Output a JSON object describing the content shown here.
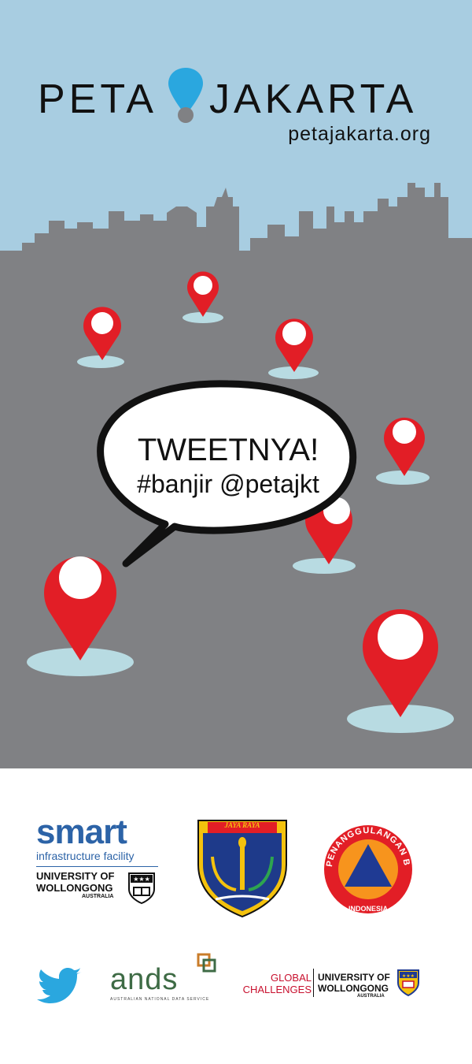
{
  "header": {
    "title_left": "PETA",
    "title_right": "JAKARTA",
    "url": "petajakarta.org"
  },
  "bubble": {
    "line1": "TWEETNYA!",
    "line2": "#banjir @petajkt"
  },
  "colors": {
    "sky": "#a8cde1",
    "city": "#808184",
    "pin_red": "#e21e26",
    "drop_blue": "#2aa7df",
    "smart_blue": "#2c63a7"
  },
  "sponsors": {
    "smart": {
      "name": "smart",
      "sub": "infrastructure facility",
      "uni_line1": "UNIVERSITY OF",
      "uni_line2": "WOLLONGONG",
      "country": "AUSTRALIA"
    },
    "jakarta_crest": {
      "banner": "JAYA RAYA"
    },
    "bnpb": {
      "ring_text": "PENANGGULANGAN BENCANA",
      "bottom_text": "INDONESIA"
    },
    "twitter": {
      "icon": "twitter-bird-icon"
    },
    "ands": {
      "name": "ands",
      "full": "AUSTRALIAN NATIONAL DATA SERVICE"
    },
    "global": {
      "line1": "GLOBAL",
      "line2": "CHALLENGES",
      "uni_line1": "UNIVERSITY OF",
      "uni_line2": "WOLLONGONG",
      "country": "AUSTRALIA"
    }
  }
}
